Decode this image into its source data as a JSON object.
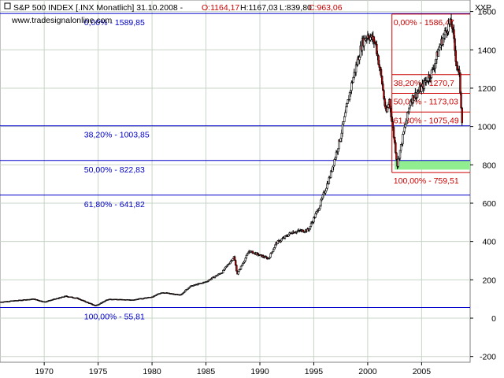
{
  "header": {
    "title": "S&P 500 INDEX [.INX  Monatlich] 31.10.2008 -",
    "open": "O:1164,17",
    "high": "H:1167,03",
    "low": "L:839,80",
    "close": "C:963,06",
    "website": "www.tradesignalonline.com",
    "symbol_label": "XXP"
  },
  "colors": {
    "fib_long": "#0000cc",
    "fib_short": "#cc0000",
    "candle_up": "#ffffff",
    "candle_down": "#cc0000",
    "zone": "#90ee90",
    "grid": "#c8d4c8"
  },
  "chart_data": {
    "type": "candlestick",
    "x_ticks": [
      "1970",
      "1975",
      "1980",
      "1985",
      "1990",
      "1995",
      "2000",
      "2005"
    ],
    "y_ticks": [
      "-200",
      "0",
      "200",
      "400",
      "600",
      "800",
      "1000",
      "1200",
      "1400",
      "1600"
    ],
    "xlim": [
      1965.9,
      2009.5
    ],
    "ylim": [
      -230,
      1660
    ],
    "grid": true,
    "series": [
      {
        "x": [
          1966.0,
          1968.0,
          1969.0,
          1970.0,
          1972.0,
          1973.0,
          1974.75,
          1976.0,
          1978.0,
          1980.0,
          1980.9,
          1982.6,
          1983.5,
          1985.0,
          1986.5,
          1987.6,
          1987.9,
          1989.0,
          1990.8,
          1991.5,
          1993.0,
          1994.5,
          1995.5,
          1996.5,
          1997.5,
          1998.5,
          1999.5,
          2000.0,
          2000.7,
          2001.3,
          2001.7,
          2002.0,
          2002.75,
          2003.3,
          2004.0,
          2005.0,
          2006.0,
          2006.7,
          2007.4,
          2007.8,
          2008.2,
          2008.5,
          2008.83
        ],
        "close": [
          85,
          95,
          100,
          85,
          115,
          105,
          65,
          100,
          95,
          110,
          135,
          120,
          165,
          190,
          240,
          320,
          230,
          350,
          310,
          390,
          450,
          460,
          580,
          740,
          950,
          1220,
          1440,
          1480,
          1440,
          1240,
          1060,
          1140,
          800,
          960,
          1140,
          1200,
          1290,
          1420,
          1520,
          1540,
          1340,
          1260,
          963
        ]
      }
    ]
  },
  "fibonacci_long": {
    "levels": [
      {
        "label": "0,00% - 1589,85",
        "value": 1589.85
      },
      {
        "label": "38,20% - 1003,85",
        "value": 1003.85
      },
      {
        "label": "50,00% - 822,83",
        "value": 822.83
      },
      {
        "label": "61,80% - 641,82",
        "value": 641.82
      },
      {
        "label": "100,00% - 55,81",
        "value": 55.81
      }
    ]
  },
  "fibonacci_short": {
    "levels": [
      {
        "label": "0,00% - 1586,47",
        "value": 1586.47
      },
      {
        "label": "38,20% - 1270,7",
        "value": 1270.7
      },
      {
        "label": "50,00% - 1173,03",
        "value": 1173.03
      },
      {
        "label": "61,80% - 1075,49",
        "value": 1075.49
      },
      {
        "label": "100,00% - 759,51",
        "value": 759.51
      }
    ],
    "zone": [
      775,
      822.83
    ]
  }
}
